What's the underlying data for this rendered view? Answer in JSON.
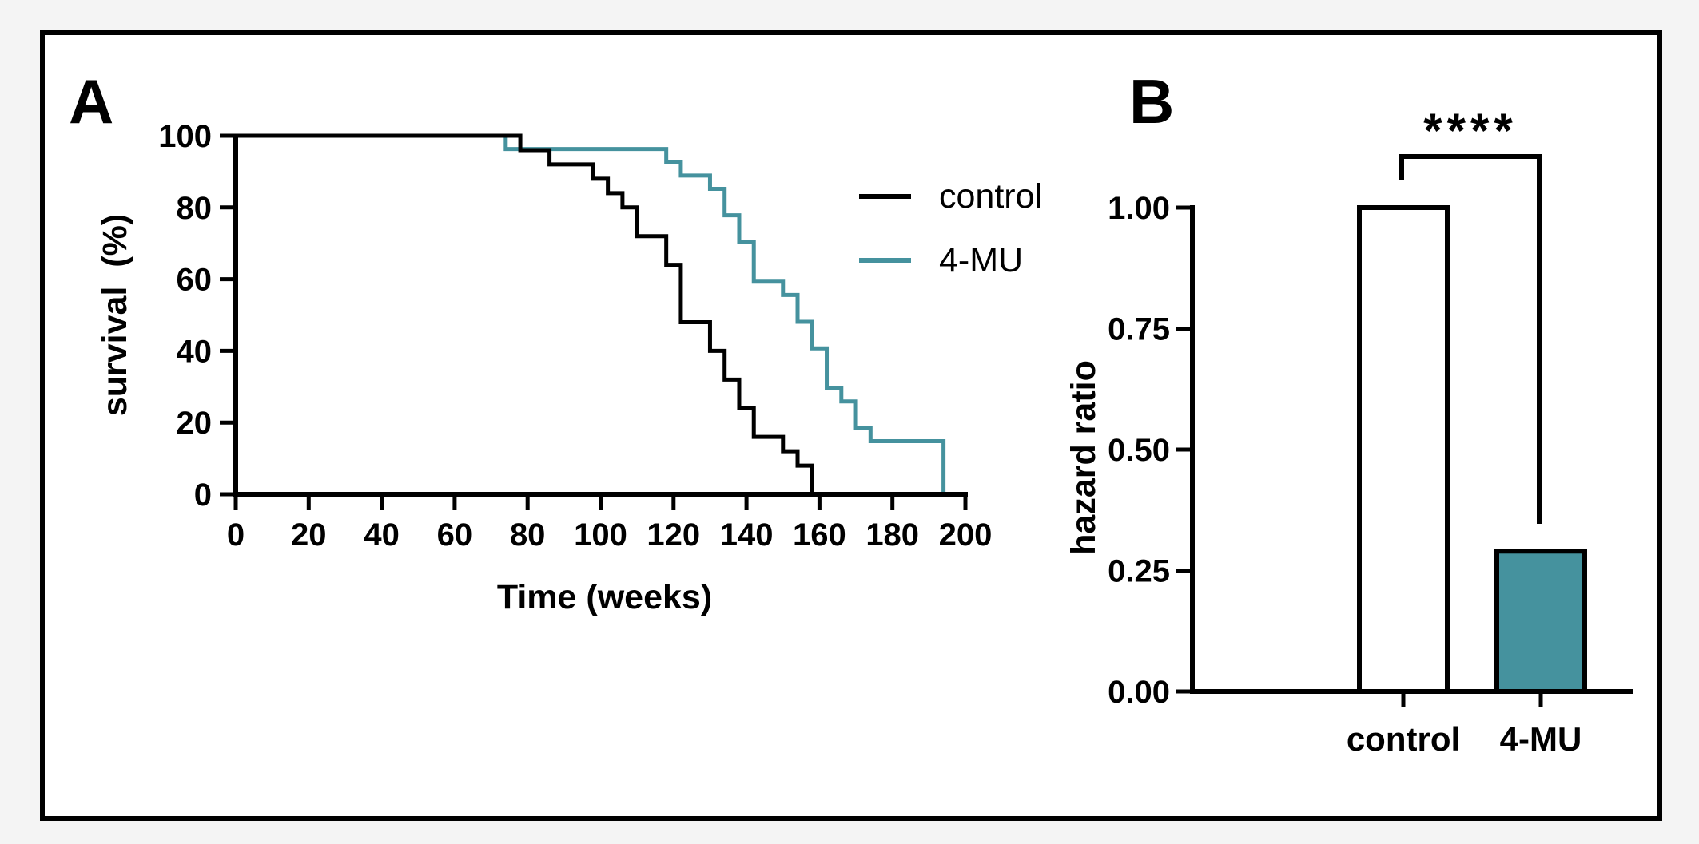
{
  "chart_data": [
    {
      "panel": "A",
      "type": "line",
      "step": true,
      "xlabel": "Time (weeks)",
      "ylabel": "survival  (%)",
      "xlim": [
        0,
        200
      ],
      "ylim": [
        0,
        100
      ],
      "xticks": [
        "0",
        "20",
        "40",
        "60",
        "80",
        "100",
        "120",
        "140",
        "160",
        "180",
        "200"
      ],
      "yticks": [
        "0",
        "20",
        "40",
        "60",
        "80",
        "100"
      ],
      "legend_position": "top-right",
      "series": [
        {
          "name": "control",
          "color": "#000000",
          "x": [
            0,
            78,
            86,
            98,
            102,
            106,
            110,
            118,
            122,
            130,
            134,
            138,
            142,
            150,
            154,
            158
          ],
          "y": [
            100,
            96,
            92,
            88,
            84,
            80,
            72,
            64,
            48,
            40,
            32,
            24,
            16,
            12,
            8,
            0
          ]
        },
        {
          "name": "4-MU",
          "color": "#45929e",
          "x": [
            0,
            74,
            118,
            122,
            130,
            134,
            138,
            142,
            150,
            154,
            158,
            162,
            166,
            170,
            174,
            194
          ],
          "y": [
            100,
            96.3,
            92.6,
            88.9,
            85.2,
            77.8,
            70.4,
            59.3,
            55.6,
            48.1,
            40.7,
            29.6,
            25.9,
            18.5,
            14.8,
            0
          ]
        }
      ]
    },
    {
      "panel": "B",
      "type": "bar",
      "ylabel": "hazard ratio",
      "ylim": [
        0,
        1.0
      ],
      "yticks": [
        "0.00",
        "0.25",
        "0.50",
        "0.75",
        "1.00"
      ],
      "categories": [
        "control",
        "4-MU"
      ],
      "values": [
        1.0,
        0.29
      ],
      "colors": [
        "#ffffff",
        "#45929e"
      ],
      "significance": "****"
    }
  ]
}
